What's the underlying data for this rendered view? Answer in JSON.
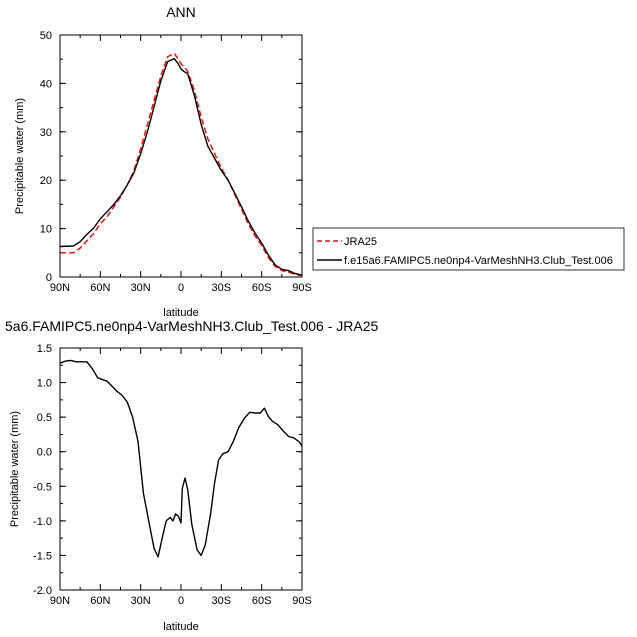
{
  "chart_data": [
    {
      "type": "line",
      "title": "ANN",
      "xlabel": "latitude",
      "ylabel": "Precipitable water (mm)",
      "xlim": [
        90,
        -90
      ],
      "ylim": [
        0,
        50
      ],
      "x_ticks": [
        90,
        60,
        30,
        0,
        -30,
        -60,
        -90
      ],
      "x_tick_labels": [
        "90N",
        "60N",
        "30N",
        "0",
        "30S",
        "60S",
        "90S"
      ],
      "y_ticks": [
        0,
        10,
        20,
        30,
        40,
        50
      ],
      "y_tick_labels": [
        "0",
        "10",
        "20",
        "30",
        "40",
        "50"
      ],
      "legend": "right",
      "series": [
        {
          "name": "JRA25",
          "color": "#ff0000",
          "dash": "dashed",
          "x": [
            90,
            80,
            75,
            70,
            65,
            60,
            55,
            50,
            45,
            40,
            35,
            30,
            25,
            20,
            15,
            10,
            5,
            2,
            0,
            -2,
            -5,
            -10,
            -15,
            -20,
            -25,
            -30,
            -35,
            -40,
            -45,
            -50,
            -55,
            -60,
            -65,
            -70,
            -75,
            -80,
            -85,
            -90
          ],
          "y": [
            5.0,
            5.0,
            6.0,
            7.5,
            9.0,
            11.0,
            12.5,
            14.5,
            16.5,
            19.0,
            22.0,
            26.5,
            31.5,
            36.5,
            41.5,
            45.5,
            46.2,
            45.0,
            44.0,
            43.5,
            42.5,
            38.5,
            33.0,
            28.5,
            25.5,
            22.5,
            20.0,
            17.0,
            14.0,
            11.0,
            8.5,
            6.5,
            4.0,
            2.2,
            1.3,
            1.0,
            0.5,
            0.3
          ]
        },
        {
          "name": "f.e15a6.FAMIPC5.ne0np4-VarMeshNH3.Club_Test.006",
          "color": "#000000",
          "dash": "solid",
          "x": [
            90,
            80,
            75,
            70,
            65,
            60,
            55,
            50,
            45,
            40,
            35,
            30,
            25,
            20,
            15,
            10,
            5,
            2,
            0,
            -2,
            -5,
            -10,
            -15,
            -20,
            -25,
            -30,
            -35,
            -40,
            -45,
            -50,
            -55,
            -60,
            -65,
            -70,
            -75,
            -80,
            -85,
            -90
          ],
          "y": [
            6.3,
            6.4,
            7.3,
            8.8,
            10.1,
            12.0,
            13.5,
            15.0,
            16.8,
            19.0,
            21.5,
            25.5,
            30.0,
            35.2,
            40.5,
            44.5,
            45.1,
            44.0,
            43.0,
            42.5,
            42.0,
            37.5,
            31.5,
            27.0,
            24.5,
            22.0,
            20.0,
            17.3,
            14.5,
            11.6,
            9.1,
            7.0,
            4.5,
            2.5,
            1.6,
            1.3,
            0.7,
            0.4
          ]
        }
      ]
    },
    {
      "type": "line",
      "title": "5a6.FAMIPC5.ne0np4-VarMeshNH3.Club_Test.006 - JRA25",
      "xlabel": "latitude",
      "ylabel": "Precipitable water (mm)",
      "xlim": [
        90,
        -90
      ],
      "ylim": [
        -2.0,
        1.5
      ],
      "x_ticks": [
        90,
        60,
        30,
        0,
        -30,
        -60,
        -90
      ],
      "x_tick_labels": [
        "90N",
        "60N",
        "30N",
        "0",
        "30S",
        "60S",
        "90S"
      ],
      "y_ticks": [
        -2.0,
        -1.5,
        -1.0,
        -0.5,
        0.0,
        0.5,
        1.0,
        1.5
      ],
      "y_tick_labels": [
        "-2.0",
        "-1.5",
        "-1.0",
        "-0.5",
        "0.0",
        "0.5",
        "1.0",
        "1.5"
      ],
      "series": [
        {
          "color": "#000000",
          "dash": "solid",
          "x": [
            90,
            86,
            82,
            78,
            74,
            70,
            66,
            62,
            58,
            55,
            52,
            48,
            44,
            40,
            36,
            32,
            28,
            24,
            20,
            17,
            14,
            11,
            8,
            6,
            4,
            2,
            0,
            -1,
            -3,
            -5,
            -8,
            -12,
            -15,
            -18,
            -22,
            -25,
            -28,
            -31,
            -35,
            -39,
            -43,
            -47,
            -51,
            -55,
            -59,
            -62,
            -65,
            -68,
            -72,
            -76,
            -80,
            -84,
            -88,
            -90
          ],
          "y": [
            1.28,
            1.31,
            1.32,
            1.3,
            1.3,
            1.3,
            1.2,
            1.07,
            1.04,
            1.02,
            0.96,
            0.88,
            0.82,
            0.72,
            0.5,
            0.15,
            -0.6,
            -1.0,
            -1.4,
            -1.52,
            -1.25,
            -1.0,
            -0.95,
            -1.0,
            -0.9,
            -0.93,
            -1.03,
            -0.53,
            -0.38,
            -0.55,
            -1.05,
            -1.42,
            -1.5,
            -1.35,
            -0.9,
            -0.45,
            -0.12,
            -0.03,
            0.0,
            0.15,
            0.35,
            0.48,
            0.57,
            0.56,
            0.56,
            0.63,
            0.51,
            0.44,
            0.39,
            0.3,
            0.22,
            0.2,
            0.14,
            0.08
          ]
        }
      ]
    }
  ]
}
